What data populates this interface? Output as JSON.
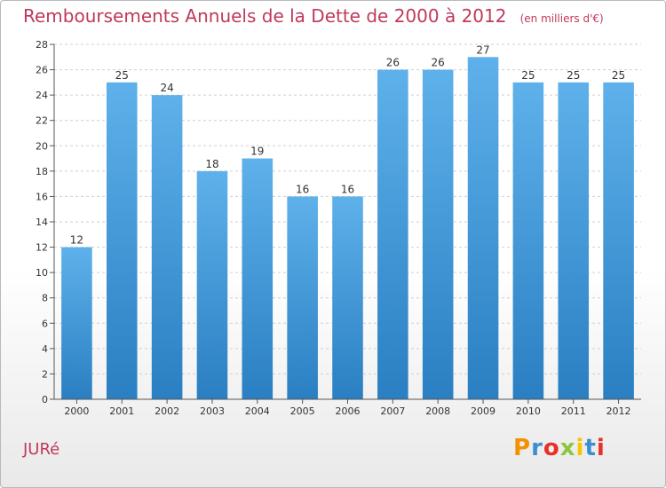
{
  "header": {
    "title": "Remboursements Annuels de la Dette de 2000 à 2012",
    "subtitle": "(en milliers d'€)"
  },
  "footer": {
    "commune": "JURé",
    "brand": "Proxiti"
  },
  "colors": {
    "title": "#c0395c",
    "bar_top": "#5eb1ea",
    "bar_bottom": "#2a7fc2",
    "logo": [
      "#f39200",
      "#3b8fd1",
      "#e7302a",
      "#8cc63e",
      "#f7c600",
      "#3b8fd1",
      "#e7302a"
    ]
  },
  "chart_data": {
    "type": "bar",
    "categories": [
      "2000",
      "2001",
      "2002",
      "2003",
      "2004",
      "2005",
      "2006",
      "2007",
      "2008",
      "2009",
      "2010",
      "2011",
      "2012"
    ],
    "values": [
      12,
      25,
      24,
      18,
      19,
      16,
      16,
      26,
      26,
      27,
      25,
      25,
      25
    ],
    "ylim": [
      0,
      28
    ],
    "yticks": [
      0,
      2,
      4,
      6,
      8,
      10,
      12,
      14,
      16,
      18,
      20,
      22,
      24,
      26,
      28
    ],
    "grid": true,
    "xlabel": "",
    "ylabel": ""
  }
}
